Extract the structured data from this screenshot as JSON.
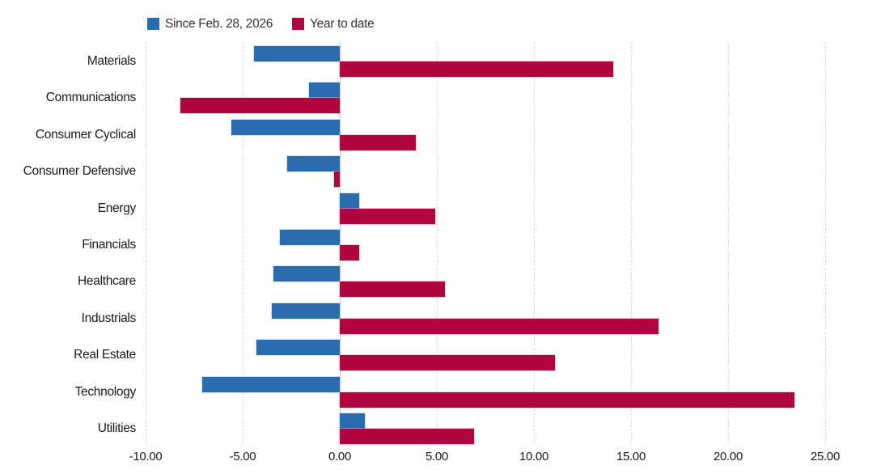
{
  "legend": {
    "items": [
      {
        "label": "Since Feb. 28, 2026",
        "color": "#2B6CB0"
      },
      {
        "label": "Year to date",
        "color": "#B0053F"
      }
    ]
  },
  "chart_data": {
    "type": "bar",
    "orientation": "horizontal",
    "title": "",
    "xlabel": "",
    "ylabel": "",
    "categories": [
      "Materials",
      "Communications",
      "Consumer Cyclical",
      "Consumer Defensive",
      "Energy",
      "Financials",
      "Healthcare",
      "Industrials",
      "Real Estate",
      "Technology",
      "Utilities"
    ],
    "series": [
      {
        "name": "Since Feb. 28, 2026",
        "color": "#2B6CB0",
        "values": [
          -4.4,
          -1.6,
          -5.6,
          -2.7,
          1.0,
          -3.1,
          -3.4,
          -3.5,
          -4.3,
          -7.1,
          1.3
        ]
      },
      {
        "name": "Year to date",
        "color": "#B0053F",
        "values": [
          14.1,
          -8.2,
          3.9,
          -0.3,
          4.9,
          1.0,
          5.4,
          16.4,
          11.1,
          23.4,
          6.9
        ]
      }
    ],
    "xlim": [
      -10,
      25
    ],
    "x_ticks": [
      -10,
      -5,
      0,
      5,
      10,
      15,
      20,
      25
    ],
    "x_tick_labels": [
      "-10.00",
      "-5.00",
      "0.00",
      "5.00",
      "10.00",
      "15.00",
      "20.00",
      "25.00"
    ],
    "grid": "vertical-dashed",
    "legend_position": "top-left"
  }
}
